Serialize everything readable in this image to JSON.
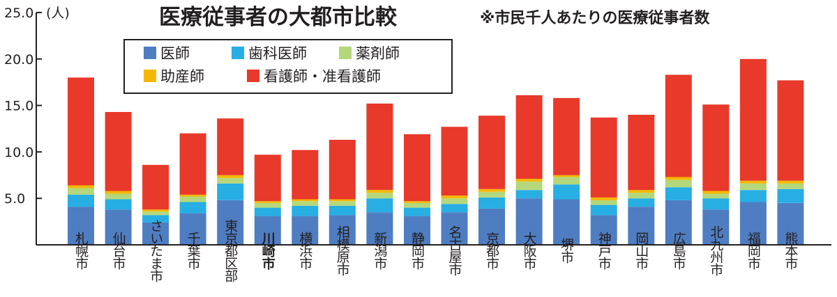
{
  "chart_data": {
    "type": "bar",
    "stacked": true,
    "title": "医療従事者の大都市比較",
    "subtitle": "※市民千人あたりの医療従事者数",
    "y_unit": "(人)",
    "ylim": [
      0,
      25
    ],
    "yticks": [
      "5.0",
      "10.0",
      "15.0",
      "20.0",
      "25.0"
    ],
    "categories": [
      "札幌市",
      "仙台市",
      "さいたま市",
      "千葉市",
      "東京都区部",
      "川崎市",
      "横浜市",
      "相模原市",
      "新潟市",
      "静岡市",
      "名古屋市",
      "京都市",
      "大阪市",
      "堺市",
      "神戸市",
      "岡山市",
      "広島市",
      "北九州市",
      "福岡市",
      "熊本市"
    ],
    "highlight_category": "川崎市",
    "highlight_color": "#e60012",
    "series": [
      {
        "name": "医師",
        "color": "#4f7dc2",
        "values": [
          4.1,
          3.8,
          2.4,
          3.4,
          4.8,
          3.1,
          3.1,
          3.2,
          3.5,
          3.1,
          3.5,
          3.9,
          5.0,
          4.9,
          3.2,
          4.1,
          4.8,
          3.8,
          4.6,
          4.5
        ]
      },
      {
        "name": "歯科医師",
        "color": "#27aee3",
        "values": [
          1.3,
          1.1,
          0.8,
          1.2,
          1.8,
          0.9,
          1.1,
          1.0,
          1.5,
          0.9,
          0.9,
          1.2,
          0.9,
          1.6,
          1.1,
          0.9,
          1.4,
          1.2,
          1.3,
          1.5
        ]
      },
      {
        "name": "薬剤師",
        "color": "#b5d77b",
        "values": [
          0.7,
          0.6,
          0.4,
          0.6,
          0.6,
          0.5,
          0.5,
          0.5,
          0.6,
          0.5,
          0.6,
          0.6,
          0.9,
          0.8,
          0.5,
          0.6,
          0.8,
          0.5,
          0.7,
          0.6
        ]
      },
      {
        "name": "助産師",
        "color": "#f5b800",
        "values": [
          0.3,
          0.3,
          0.2,
          0.2,
          0.3,
          0.2,
          0.2,
          0.2,
          0.3,
          0.2,
          0.3,
          0.3,
          0.3,
          0.2,
          0.3,
          0.3,
          0.3,
          0.3,
          0.3,
          0.3
        ]
      },
      {
        "name": "看護師・准看護師",
        "color": "#e8392a",
        "values": [
          11.6,
          8.5,
          4.8,
          6.6,
          6.1,
          5.0,
          5.3,
          6.4,
          9.3,
          7.2,
          7.4,
          7.9,
          9.0,
          8.3,
          8.6,
          8.1,
          11.0,
          9.3,
          13.1,
          10.8
        ]
      }
    ],
    "legend": {
      "rows": [
        [
          "医師",
          "歯科医師",
          "薬剤師"
        ],
        [
          "助産師",
          "看護師・准看護師"
        ]
      ],
      "placement": "top-left"
    }
  }
}
